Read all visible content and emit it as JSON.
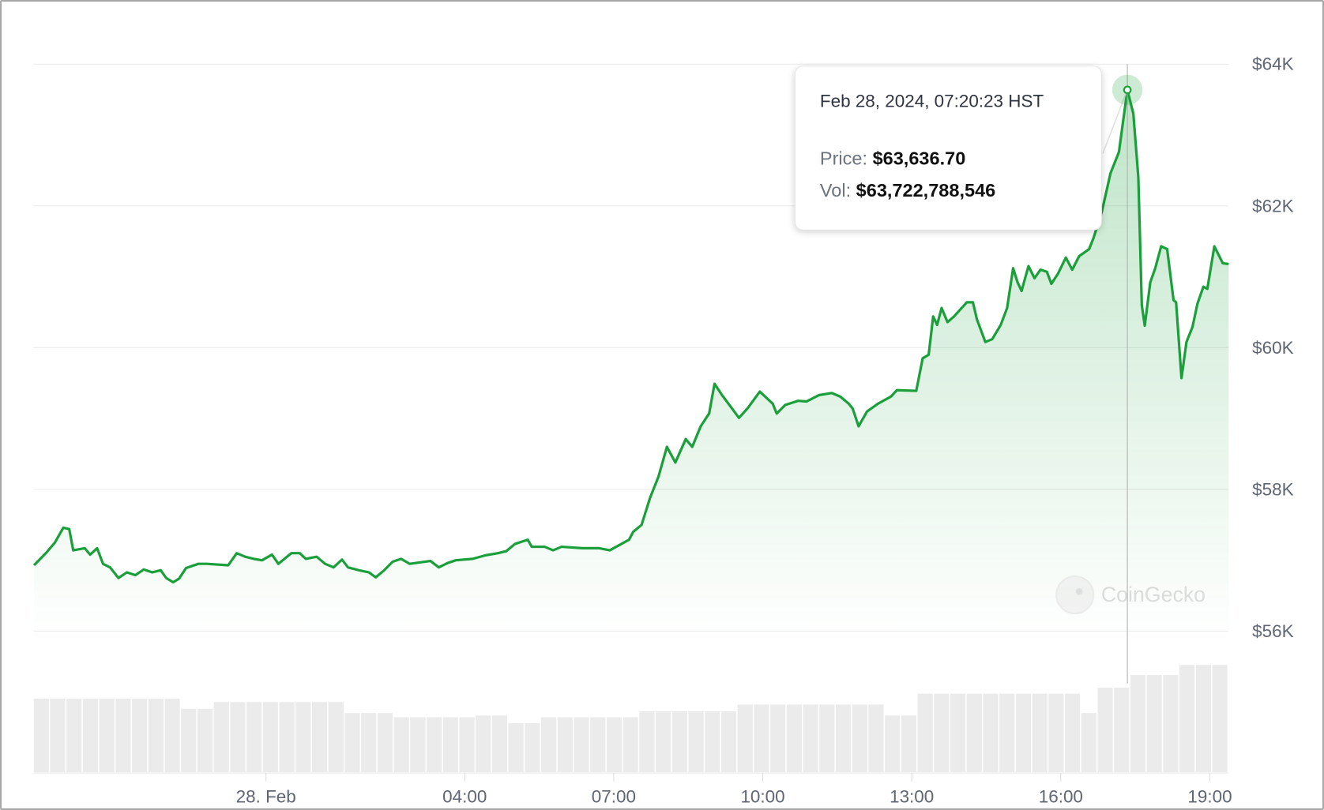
{
  "chart_data": {
    "type": "line",
    "title": "",
    "x_unit": "hours relative to 28 Feb 00:00",
    "xlim": [
      -4.68,
      19.38
    ],
    "ylim": [
      55500,
      64500
    ],
    "y_ticks": [
      56000,
      58000,
      60000,
      62000,
      64000
    ],
    "y_tick_labels": [
      "$56K",
      "$58K",
      "$60K",
      "$62K",
      "$64K"
    ],
    "x_ticks": [
      0,
      4,
      7,
      10,
      13,
      16,
      19
    ],
    "x_tick_labels": [
      "28. Feb",
      "04:00",
      "07:00",
      "10:00",
      "13:00",
      "16:00",
      "19:00"
    ],
    "grid": true,
    "series": [
      {
        "name": "Price",
        "color": "#1a9f3a",
        "x": [
          -4.67,
          -4.42,
          -4.25,
          -4.08,
          -3.96,
          -3.88,
          -3.65,
          -3.54,
          -3.4,
          -3.28,
          -3.14,
          -2.97,
          -2.8,
          -2.63,
          -2.46,
          -2.29,
          -2.12,
          -2.01,
          -1.87,
          -1.75,
          -1.61,
          -1.36,
          -1.19,
          -0.76,
          -0.59,
          -0.42,
          -0.25,
          -0.08,
          0.12,
          0.25,
          0.51,
          0.68,
          0.8,
          1.02,
          1.19,
          1.36,
          1.53,
          1.65,
          1.87,
          2.07,
          2.21,
          2.38,
          2.55,
          2.72,
          2.89,
          3.31,
          3.48,
          3.65,
          3.82,
          4.16,
          4.42,
          4.67,
          4.84,
          5.01,
          5.27,
          5.35,
          5.61,
          5.78,
          5.95,
          6.37,
          6.71,
          6.92,
          7.05,
          7.31,
          7.39,
          7.56,
          7.73,
          7.9,
          8.07,
          8.24,
          8.45,
          8.58,
          8.75,
          8.92,
          9.03,
          9.18,
          9.35,
          9.52,
          9.69,
          9.94,
          10.2,
          10.28,
          10.45,
          10.71,
          10.88,
          11.13,
          11.39,
          11.56,
          11.73,
          11.81,
          11.93,
          12.1,
          12.32,
          12.58,
          12.7,
          13.09,
          13.22,
          13.34,
          13.43,
          13.51,
          13.6,
          13.72,
          13.85,
          14.11,
          14.23,
          14.31,
          14.48,
          14.62,
          14.79,
          14.92,
          15.04,
          15.13,
          15.21,
          15.35,
          15.47,
          15.59,
          15.72,
          15.81,
          15.94,
          16.1,
          16.23,
          16.37,
          16.57,
          16.66,
          16.83,
          17.0,
          17.17,
          17.34,
          17.46,
          17.56,
          17.63,
          17.69,
          17.8,
          17.9,
          18.02,
          18.14,
          18.27,
          18.32,
          18.43,
          18.53,
          18.65,
          18.75,
          18.87,
          18.95,
          19.09,
          19.26,
          19.38
        ],
        "values": [
          56930,
          57110,
          57250,
          57460,
          57440,
          57140,
          57170,
          57080,
          57170,
          56950,
          56900,
          56750,
          56830,
          56790,
          56870,
          56830,
          56860,
          56750,
          56690,
          56740,
          56890,
          56950,
          56950,
          56930,
          57100,
          57050,
          57020,
          57000,
          57080,
          56950,
          57100,
          57100,
          57020,
          57050,
          56950,
          56900,
          57010,
          56900,
          56860,
          56830,
          56760,
          56860,
          56980,
          57020,
          56950,
          56990,
          56900,
          56960,
          57000,
          57020,
          57070,
          57100,
          57130,
          57230,
          57290,
          57190,
          57190,
          57140,
          57190,
          57170,
          57170,
          57140,
          57190,
          57290,
          57400,
          57500,
          57880,
          58180,
          58600,
          58380,
          58710,
          58600,
          58890,
          59070,
          59490,
          59330,
          59170,
          59010,
          59140,
          59380,
          59210,
          59070,
          59190,
          59250,
          59240,
          59330,
          59360,
          59310,
          59210,
          59140,
          58890,
          59100,
          59210,
          59310,
          59400,
          59390,
          59850,
          59900,
          60440,
          60320,
          60560,
          60360,
          60440,
          60640,
          60640,
          60400,
          60080,
          60120,
          60320,
          60560,
          61120,
          60920,
          60800,
          61150,
          60980,
          61100,
          61070,
          60900,
          61040,
          61270,
          61100,
          61290,
          61390,
          61550,
          61930,
          62460,
          62760,
          63636.7,
          63300,
          62400,
          60600,
          60310,
          60920,
          61120,
          61430,
          61390,
          60670,
          60640,
          59570,
          60080,
          60290,
          60620,
          60860,
          60830,
          61430,
          61190,
          61180
        ]
      },
      {
        "name": "Volume (relative)",
        "color": "#ececec",
        "values": [
          87,
          87,
          87,
          87,
          87,
          87,
          87,
          87,
          87,
          75,
          75,
          83,
          83,
          83,
          83,
          83,
          83,
          83,
          83,
          70,
          70,
          70,
          65,
          65,
          65,
          65,
          65,
          67,
          67,
          58,
          58,
          65,
          65,
          65,
          65,
          65,
          65,
          72,
          72,
          72,
          72,
          72,
          72,
          80,
          80,
          80,
          80,
          80,
          80,
          80,
          80,
          80,
          67,
          67,
          93,
          93,
          93,
          93,
          93,
          93,
          93,
          93,
          93,
          93,
          70,
          100,
          100,
          115,
          115,
          115,
          127,
          127,
          127
        ]
      }
    ],
    "highlight_index": 127
  },
  "tooltip": {
    "date": "Feb 28, 2024, 07:20:23 HST",
    "price_label": "Price:",
    "price_value": "$63,636.70",
    "vol_label": "Vol:",
    "vol_value": "$63,722,788,546"
  },
  "watermark": "CoinGecko"
}
